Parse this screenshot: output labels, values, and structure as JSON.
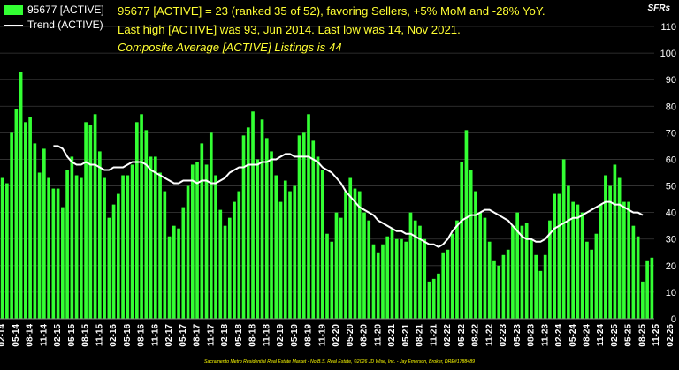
{
  "legend": {
    "bars_label": "95677 [ACTIVE]",
    "line_label": "Trend (ACTIVE)"
  },
  "headline": {
    "line1": "95677 [ACTIVE] = 23 (ranked 35 of 52), favoring Sellers, +5% MoM and -28% YoY.",
    "line2": "Last high [ACTIVE] was 93, Jun 2014. Last low was 14, Nov 2021.",
    "line3": "Composite Average [ACTIVE] Listings is 44"
  },
  "property_type": "SFRs",
  "footer": "Sacramento Metro Residential Real Estate Market - No B.S. Real Estate, ©2026 JD Wise, Inc. - Jay Emerson, Broker, DRE#1788489",
  "colors": {
    "bars": "#33ff33",
    "trend": "#ffffff",
    "headline": "#ffff33",
    "background": "#000000",
    "grid": "#3a3a3a"
  },
  "chart_data": {
    "type": "bar",
    "y_axis": {
      "min": 0,
      "max": 110,
      "step": 10,
      "position": "right"
    },
    "grid": true,
    "x_tick_labels": [
      "02-14",
      "05-14",
      "08-14",
      "11-14",
      "02-15",
      "05-15",
      "08-15",
      "11-15",
      "02-16",
      "05-16",
      "08-16",
      "11-16",
      "02-17",
      "05-17",
      "08-17",
      "11-17",
      "02-18",
      "05-18",
      "08-18",
      "11-18",
      "02-19",
      "05-19",
      "08-19",
      "11-19",
      "02-20",
      "05-20",
      "08-20",
      "11-20",
      "02-21",
      "05-21",
      "08-21",
      "11-21",
      "02-22",
      "05-22",
      "08-22",
      "11-22",
      "02-23",
      "05-23",
      "08-23",
      "11-23",
      "02-24",
      "05-24",
      "08-24",
      "11-24",
      "02-25",
      "05-25",
      "08-25",
      "11-25",
      "02-26"
    ],
    "series": [
      {
        "name": "95677 [ACTIVE]",
        "type": "bar",
        "values": [
          53,
          51,
          70,
          79,
          93,
          74,
          76,
          66,
          55,
          64,
          53,
          49,
          49,
          42,
          56,
          61,
          54,
          53,
          74,
          73,
          77,
          63,
          53,
          38,
          43,
          47,
          54,
          54,
          58,
          74,
          77,
          71,
          61,
          61,
          55,
          48,
          31,
          35,
          34,
          42,
          50,
          58,
          59,
          66,
          58,
          70,
          54,
          41,
          35,
          38,
          44,
          48,
          69,
          72,
          78,
          60,
          75,
          68,
          63,
          54,
          44,
          52,
          48,
          50,
          69,
          70,
          77,
          67,
          61,
          56,
          32,
          29,
          40,
          38,
          48,
          53,
          49,
          48,
          40,
          37,
          28,
          25,
          28,
          31,
          34,
          30,
          30,
          29,
          40,
          37,
          35,
          30,
          14,
          15,
          17,
          25,
          26,
          32,
          37,
          59,
          71,
          56,
          48,
          40,
          38,
          29,
          22,
          20,
          24,
          26,
          35,
          40,
          35,
          36,
          30,
          24,
          18,
          24,
          37,
          47,
          47,
          60,
          50,
          44,
          43,
          40,
          29,
          26,
          32,
          43,
          54,
          50,
          58,
          53,
          44,
          44,
          35,
          31,
          14,
          22,
          23
        ]
      },
      {
        "name": "Trend (ACTIVE)",
        "type": "line",
        "values": [
          null,
          null,
          null,
          null,
          null,
          null,
          null,
          null,
          null,
          null,
          null,
          65,
          65,
          64,
          61,
          59,
          58,
          58,
          59,
          58,
          58,
          57,
          56,
          56,
          57,
          57,
          57,
          58,
          59,
          59,
          59,
          58,
          56,
          55,
          54,
          53,
          52,
          51,
          51,
          52,
          52,
          52,
          51,
          52,
          52,
          51,
          51,
          52,
          53,
          55,
          56,
          57,
          57,
          58,
          58,
          58,
          59,
          59,
          60,
          60,
          61,
          62,
          62,
          61,
          61,
          61,
          61,
          60,
          59,
          57,
          56,
          55,
          53,
          51,
          48,
          46,
          44,
          42,
          41,
          40,
          39,
          37,
          36,
          35,
          34,
          33,
          33,
          32,
          32,
          31,
          30,
          29,
          28,
          28,
          27,
          28,
          30,
          33,
          35,
          37,
          38,
          39,
          39,
          40,
          41,
          41,
          40,
          39,
          38,
          37,
          35,
          33,
          31,
          30,
          30,
          29,
          29,
          30,
          32,
          34,
          35,
          36,
          37,
          38,
          38,
          39,
          40,
          41,
          42,
          43,
          44,
          44,
          43,
          43,
          42,
          41,
          40,
          40,
          39
        ]
      }
    ]
  }
}
